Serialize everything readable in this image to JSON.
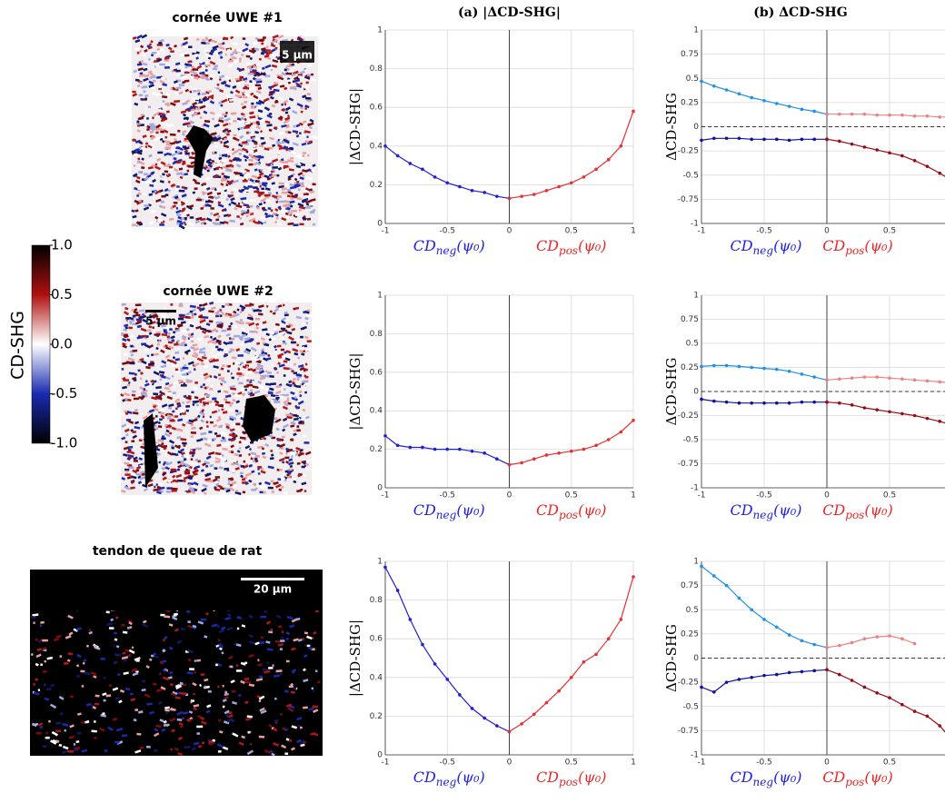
{
  "images": [
    {
      "title": "cornée UWE #1",
      "scale": "5 µm"
    },
    {
      "title": "cornée UWE #2",
      "scale": "5 µm"
    },
    {
      "title": "tendon de queue de rat",
      "scale": "20 µm"
    }
  ],
  "colorbar": {
    "label": "CD-SHG",
    "lim": [
      -1,
      1
    ],
    "ticks": [
      {
        "value": 1,
        "label": "1.0"
      },
      {
        "value": 0.5,
        "label": "0.5"
      },
      {
        "value": 0,
        "label": "0.0"
      },
      {
        "value": -0.5,
        "label": "-0.5"
      },
      {
        "value": -1,
        "label": "-1.0"
      }
    ]
  },
  "chart_data": [
    {
      "type": "line",
      "title": "(a) |ΔCD-SHG|",
      "ylabel": "|ΔCD-SHG|",
      "xlabels": [
        {
          "base": "CD",
          "sub": "neg",
          "arg": "(ψ₀)",
          "color": "#2020e0"
        },
        {
          "base": "CD",
          "sub": "pos",
          "arg": "(ψ₀)",
          "color": "#e82828"
        }
      ],
      "xlim": [
        -1,
        1
      ],
      "ylim": [
        0,
        1
      ],
      "xticks": [
        -1,
        -0.5,
        0,
        0.5,
        1
      ],
      "yticks": [
        0,
        0.2,
        0.4,
        0.6,
        0.8,
        1
      ],
      "grid": true,
      "series": [
        {
          "color": "#1f1fd6",
          "x": [
            -1,
            -0.9,
            -0.8,
            -0.7,
            -0.6,
            -0.5,
            -0.4,
            -0.3,
            -0.2,
            -0.1,
            0
          ],
          "values": [
            0.4,
            0.35,
            0.31,
            0.28,
            0.24,
            0.21,
            0.19,
            0.17,
            0.16,
            0.14,
            0.13
          ]
        },
        {
          "color": "#e83030",
          "x": [
            0,
            0.1,
            0.2,
            0.3,
            0.4,
            0.5,
            0.6,
            0.7,
            0.8,
            0.9,
            1
          ],
          "values": [
            0.13,
            0.14,
            0.15,
            0.17,
            0.19,
            0.21,
            0.24,
            0.28,
            0.33,
            0.4,
            0.58
          ]
        }
      ]
    },
    {
      "type": "line",
      "title": "(b) ΔCD-SHG",
      "ylabel": "ΔCD-SHG",
      "xlabels": [
        {
          "base": "CD",
          "sub": "neg",
          "arg": "(ψ₀)",
          "color": "#2020e0"
        },
        {
          "base": "CD",
          "sub": "pos",
          "arg": "(ψ₀)",
          "color": "#e82828"
        }
      ],
      "xlim": [
        -1,
        1
      ],
      "ylim": [
        -1,
        1
      ],
      "xticks": [
        -1,
        -0.5,
        0,
        0.5
      ],
      "yticks": [
        -1,
        -0.75,
        -0.5,
        -0.25,
        0,
        0.25,
        0.5,
        0.75,
        1
      ],
      "grid": true,
      "zero_line": true,
      "series": [
        {
          "color": "#1e90e8",
          "x": [
            -1,
            -0.9,
            -0.8,
            -0.7,
            -0.6,
            -0.5,
            -0.4,
            -0.3,
            -0.2,
            -0.1,
            0
          ],
          "values": [
            0.47,
            0.42,
            0.38,
            0.34,
            0.3,
            0.27,
            0.24,
            0.21,
            0.18,
            0.16,
            0.13
          ]
        },
        {
          "color": "#1010a0",
          "x": [
            -1,
            -0.9,
            -0.8,
            -0.7,
            -0.6,
            -0.5,
            -0.4,
            -0.3,
            -0.2,
            -0.1,
            0
          ],
          "values": [
            -0.14,
            -0.12,
            -0.12,
            -0.12,
            -0.13,
            -0.13,
            -0.13,
            -0.14,
            -0.13,
            -0.13,
            -0.13
          ]
        },
        {
          "color": "#9a0a14",
          "x": [
            0,
            0.1,
            0.2,
            0.3,
            0.4,
            0.5,
            0.6,
            0.7,
            0.8,
            0.9,
            1
          ],
          "values": [
            -0.13,
            -0.15,
            -0.18,
            -0.21,
            -0.24,
            -0.27,
            -0.3,
            -0.35,
            -0.41,
            -0.48,
            -0.56
          ]
        },
        {
          "color": "#f08080",
          "x": [
            0,
            0.1,
            0.2,
            0.3,
            0.4,
            0.5,
            0.6,
            0.7,
            0.8,
            0.9,
            1
          ],
          "values": [
            0.13,
            0.13,
            0.13,
            0.13,
            0.12,
            0.12,
            0.12,
            0.11,
            0.11,
            0.1,
            0.1
          ]
        }
      ]
    },
    {
      "type": "line",
      "ylabel": "|ΔCD-SHG|",
      "xlabels": [
        {
          "base": "CD",
          "sub": "neg",
          "arg": "(ψ₀)",
          "color": "#2020e0"
        },
        {
          "base": "CD",
          "sub": "pos",
          "arg": "(ψ₀)",
          "color": "#e82828"
        }
      ],
      "xlim": [
        -1,
        1
      ],
      "ylim": [
        0,
        1
      ],
      "xticks": [
        -1,
        -0.5,
        0,
        0.5,
        1
      ],
      "yticks": [
        0,
        0.2,
        0.4,
        0.6,
        0.8,
        1
      ],
      "grid": true,
      "series": [
        {
          "color": "#1f1fd6",
          "x": [
            -1,
            -0.9,
            -0.8,
            -0.7,
            -0.6,
            -0.5,
            -0.4,
            -0.3,
            -0.2,
            -0.1,
            0
          ],
          "values": [
            0.27,
            0.22,
            0.21,
            0.21,
            0.2,
            0.2,
            0.2,
            0.19,
            0.18,
            0.15,
            0.12
          ]
        },
        {
          "color": "#e83030",
          "x": [
            0,
            0.1,
            0.2,
            0.3,
            0.4,
            0.5,
            0.6,
            0.7,
            0.8,
            0.9,
            1
          ],
          "values": [
            0.12,
            0.13,
            0.15,
            0.17,
            0.18,
            0.19,
            0.2,
            0.22,
            0.25,
            0.29,
            0.35
          ]
        }
      ]
    },
    {
      "type": "line",
      "ylabel": "ΔCD-SHG",
      "xlabels": [
        {
          "base": "CD",
          "sub": "neg",
          "arg": "(ψ₀)",
          "color": "#2020e0"
        },
        {
          "base": "CD",
          "sub": "pos",
          "arg": "(ψ₀)",
          "color": "#e82828"
        }
      ],
      "xlim": [
        -1,
        1
      ],
      "ylim": [
        -1,
        1
      ],
      "xticks": [
        -1,
        -0.5,
        0,
        0.5
      ],
      "yticks": [
        -1,
        -0.75,
        -0.5,
        -0.25,
        0,
        0.25,
        0.5,
        0.75,
        1
      ],
      "grid": true,
      "zero_line": true,
      "series": [
        {
          "color": "#1e90e8",
          "x": [
            -1,
            -0.9,
            -0.8,
            -0.7,
            -0.6,
            -0.5,
            -0.4,
            -0.3,
            -0.2,
            -0.1,
            0
          ],
          "values": [
            0.26,
            0.27,
            0.27,
            0.26,
            0.25,
            0.24,
            0.23,
            0.21,
            0.18,
            0.15,
            0.12
          ]
        },
        {
          "color": "#1010a0",
          "x": [
            -1,
            -0.9,
            -0.8,
            -0.7,
            -0.6,
            -0.5,
            -0.4,
            -0.3,
            -0.2,
            -0.1,
            0
          ],
          "values": [
            -0.08,
            -0.1,
            -0.11,
            -0.12,
            -0.12,
            -0.12,
            -0.12,
            -0.12,
            -0.11,
            -0.11,
            -0.11
          ]
        },
        {
          "color": "#9a0a14",
          "x": [
            0,
            0.1,
            0.2,
            0.3,
            0.4,
            0.5,
            0.6,
            0.7,
            0.8,
            0.9,
            1
          ],
          "values": [
            -0.11,
            -0.12,
            -0.14,
            -0.17,
            -0.19,
            -0.21,
            -0.23,
            -0.25,
            -0.28,
            -0.31,
            -0.35
          ]
        },
        {
          "color": "#f08080",
          "x": [
            0,
            0.1,
            0.2,
            0.3,
            0.4,
            0.5,
            0.6,
            0.7,
            0.8,
            0.9,
            1
          ],
          "values": [
            0.12,
            0.13,
            0.14,
            0.15,
            0.15,
            0.14,
            0.13,
            0.12,
            0.11,
            0.1,
            0.09
          ]
        }
      ]
    },
    {
      "type": "line",
      "ylabel": "|ΔCD-SHG|",
      "xlabels": [
        {
          "base": "CD",
          "sub": "neg",
          "arg": "(ψ₀)",
          "color": "#2020e0"
        },
        {
          "base": "CD",
          "sub": "pos",
          "arg": "(ψ₀)",
          "color": "#e82828"
        }
      ],
      "xlim": [
        -1,
        1
      ],
      "ylim": [
        0,
        1
      ],
      "xticks": [
        -1,
        -0.5,
        0,
        0.5,
        1
      ],
      "yticks": [
        0,
        0.2,
        0.4,
        0.6,
        0.8,
        1
      ],
      "grid": true,
      "series": [
        {
          "color": "#1f1fd6",
          "x": [
            -1,
            -0.9,
            -0.8,
            -0.7,
            -0.6,
            -0.5,
            -0.4,
            -0.3,
            -0.2,
            -0.1,
            0
          ],
          "values": [
            0.97,
            0.85,
            0.7,
            0.57,
            0.47,
            0.39,
            0.31,
            0.24,
            0.19,
            0.15,
            0.12
          ]
        },
        {
          "color": "#e83030",
          "x": [
            0,
            0.1,
            0.2,
            0.3,
            0.4,
            0.5,
            0.6,
            0.7,
            0.8,
            0.9,
            1
          ],
          "values": [
            0.12,
            0.16,
            0.21,
            0.27,
            0.33,
            0.4,
            0.48,
            0.52,
            0.6,
            0.7,
            0.92
          ]
        }
      ]
    },
    {
      "type": "line",
      "ylabel": "ΔCD-SHG",
      "xlabels": [
        {
          "base": "CD",
          "sub": "neg",
          "arg": "(ψ₀)",
          "color": "#2020e0"
        },
        {
          "base": "CD",
          "sub": "pos",
          "arg": "(ψ₀)",
          "color": "#e82828"
        }
      ],
      "xlim": [
        -1,
        1
      ],
      "ylim": [
        -1,
        1
      ],
      "xticks": [
        -1,
        -0.5,
        0,
        0.5
      ],
      "yticks": [
        -1,
        -0.75,
        -0.5,
        -0.25,
        0,
        0.25,
        0.5,
        0.75,
        1
      ],
      "grid": true,
      "zero_line": true,
      "series": [
        {
          "color": "#1e90e8",
          "x": [
            -1,
            -0.9,
            -0.8,
            -0.7,
            -0.6,
            -0.5,
            -0.4,
            -0.3,
            -0.2,
            -0.1,
            0
          ],
          "values": [
            0.95,
            0.85,
            0.75,
            0.62,
            0.5,
            0.4,
            0.32,
            0.24,
            0.18,
            0.14,
            0.11
          ]
        },
        {
          "color": "#1010a0",
          "x": [
            -1,
            -0.9,
            -0.8,
            -0.7,
            -0.6,
            -0.5,
            -0.4,
            -0.3,
            -0.2,
            -0.1,
            0
          ],
          "values": [
            -0.3,
            -0.35,
            -0.25,
            -0.22,
            -0.2,
            -0.18,
            -0.17,
            -0.15,
            -0.14,
            -0.13,
            -0.12
          ]
        },
        {
          "color": "#9a0a14",
          "x": [
            0,
            0.1,
            0.2,
            0.3,
            0.4,
            0.5,
            0.6,
            0.7,
            0.8,
            0.9,
            1
          ],
          "values": [
            -0.12,
            -0.17,
            -0.23,
            -0.3,
            -0.36,
            -0.41,
            -0.48,
            -0.55,
            -0.6,
            -0.7,
            -0.85
          ]
        },
        {
          "color": "#f08080",
          "x": [
            0,
            0.1,
            0.2,
            0.3,
            0.4,
            0.5,
            0.6,
            0.7,
            0.8,
            0.9,
            1
          ],
          "values": [
            0.11,
            0.13,
            0.16,
            0.2,
            0.22,
            0.23,
            0.2,
            0.15,
            null,
            null,
            null
          ]
        }
      ]
    }
  ]
}
